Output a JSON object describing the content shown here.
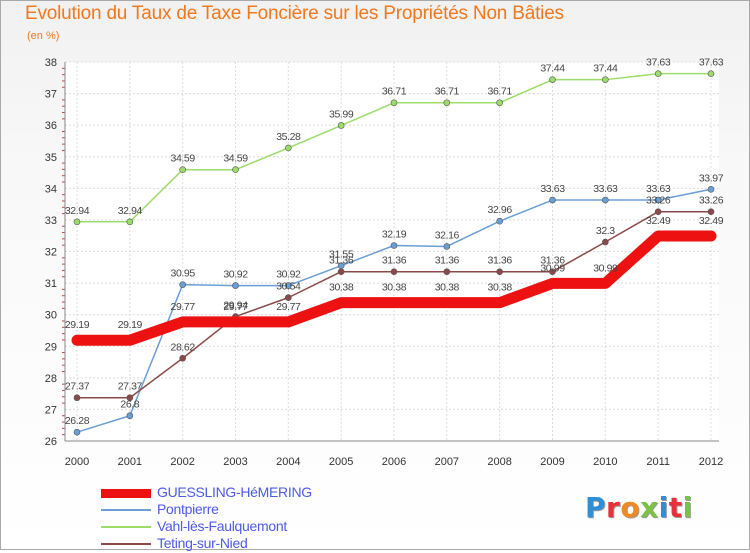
{
  "title": "Evolution du Taux de Taxe Foncière sur les Propriétés Non Bâties",
  "subtitle": "(en %)",
  "logo": {
    "text": "Proxiti",
    "letter_colors": [
      "#2f8fd6",
      "#e8303a",
      "#f08a24",
      "#7cc242",
      "#2f8fd6",
      "#e8303a",
      "#7cc242"
    ]
  },
  "chart_data": {
    "type": "line",
    "x": [
      "2000",
      "2001",
      "2002",
      "2003",
      "2004",
      "2005",
      "2006",
      "2007",
      "2008",
      "2009",
      "2010",
      "2011",
      "2012"
    ],
    "ylim": [
      26,
      38
    ],
    "yticks": [
      "26",
      "27",
      "28",
      "29",
      "30",
      "31",
      "32",
      "33",
      "34",
      "35",
      "36",
      "37",
      "38"
    ],
    "grid": true,
    "legend_position": "bottom-left",
    "series": [
      {
        "name": "GUESSLING-HéMERING",
        "color": "#ee1111",
        "values": [
          29.19,
          29.19,
          29.77,
          29.77,
          29.77,
          30.38,
          30.38,
          30.38,
          30.38,
          30.99,
          30.99,
          32.49,
          32.49
        ],
        "labels": [
          "29.19",
          "29.19",
          "29.77",
          "29.77",
          "29.77",
          "30.38",
          "30.38",
          "30.38",
          "30.38",
          "30.99",
          "30.99",
          "32.49",
          "32.49"
        ]
      },
      {
        "name": "Pontpierre",
        "color": "#6a9fd6",
        "values": [
          26.28,
          26.8,
          30.95,
          30.92,
          30.92,
          31.55,
          32.19,
          32.16,
          32.96,
          33.63,
          33.63,
          33.63,
          33.97
        ],
        "labels": [
          "26.28",
          "26.8",
          "30.95",
          "30.92",
          "30.92",
          "31.55",
          "32.19",
          "32.16",
          "32.96",
          "33.63",
          "33.63",
          "33.63",
          "33.97"
        ]
      },
      {
        "name": "Vahl-lès-Faulquemont",
        "color": "#9bdc6a",
        "values": [
          32.94,
          32.94,
          34.59,
          34.59,
          35.28,
          35.99,
          36.71,
          36.71,
          36.71,
          37.44,
          37.44,
          37.63,
          37.63
        ],
        "labels": [
          "32.94",
          "32.94",
          "34.59",
          "34.59",
          "35.28",
          "35.99",
          "36.71",
          "36.71",
          "36.71",
          "37.44",
          "37.44",
          "37.63",
          "37.63"
        ]
      },
      {
        "name": "Teting-sur-Nied",
        "color": "#8b4a4a",
        "values": [
          27.37,
          27.37,
          28.62,
          29.94,
          30.54,
          31.36,
          31.36,
          31.36,
          31.36,
          31.36,
          32.3,
          33.26,
          33.26
        ],
        "labels": [
          "27.37",
          "27.37",
          "28.62",
          "29.94",
          "30.54",
          "31.36",
          "31.36",
          "31.36",
          "31.36",
          "31.36",
          "32.3",
          "33.26",
          "33.26"
        ]
      }
    ]
  }
}
